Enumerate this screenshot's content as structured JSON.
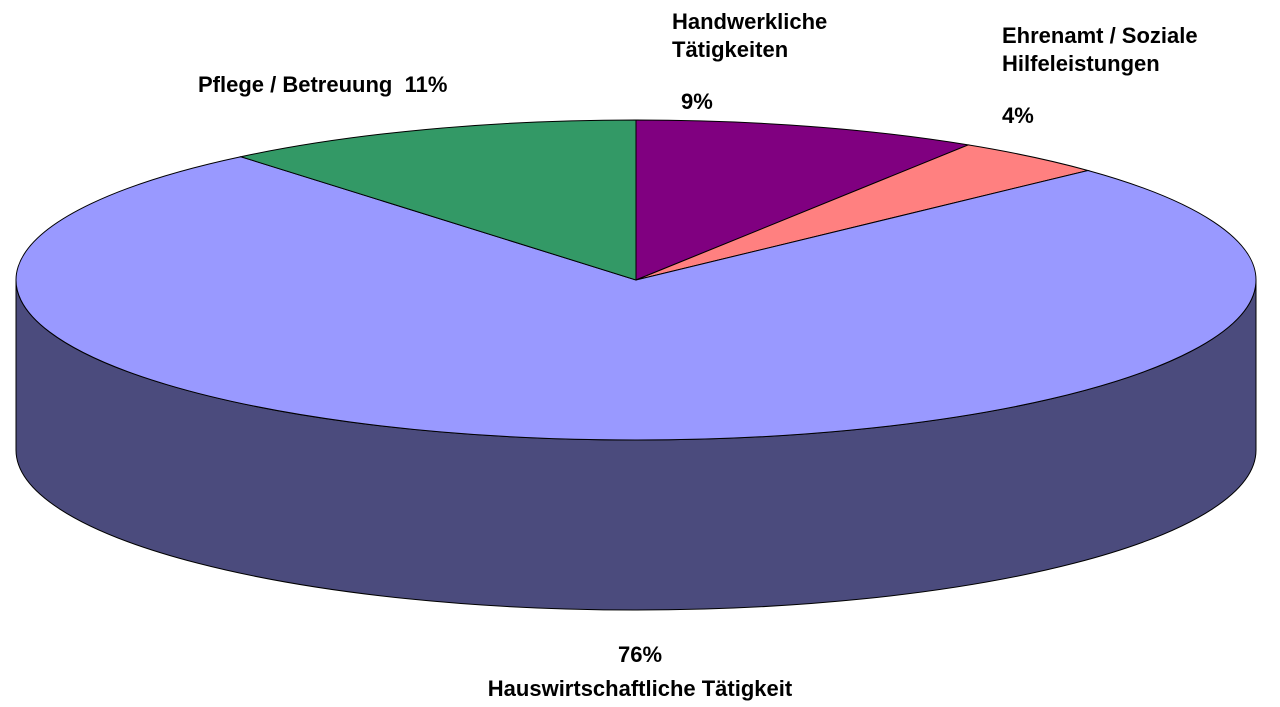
{
  "chart_data": {
    "type": "pie3d",
    "categories": [
      "Handwerkliche Tätigkeiten",
      "Ehrenamt / Soziale Hilfeleistungen",
      "Hauswirtschaftliche Tätigkeit",
      "Pflege / Betreuung"
    ],
    "values": [
      9,
      4,
      76,
      11
    ],
    "value_labels": [
      "9%",
      "4%",
      "76%",
      "11%"
    ],
    "colors": [
      "#800080",
      "#ff8080",
      "#9999ff",
      "#339966"
    ],
    "side_color": "#4b4b7d"
  }
}
